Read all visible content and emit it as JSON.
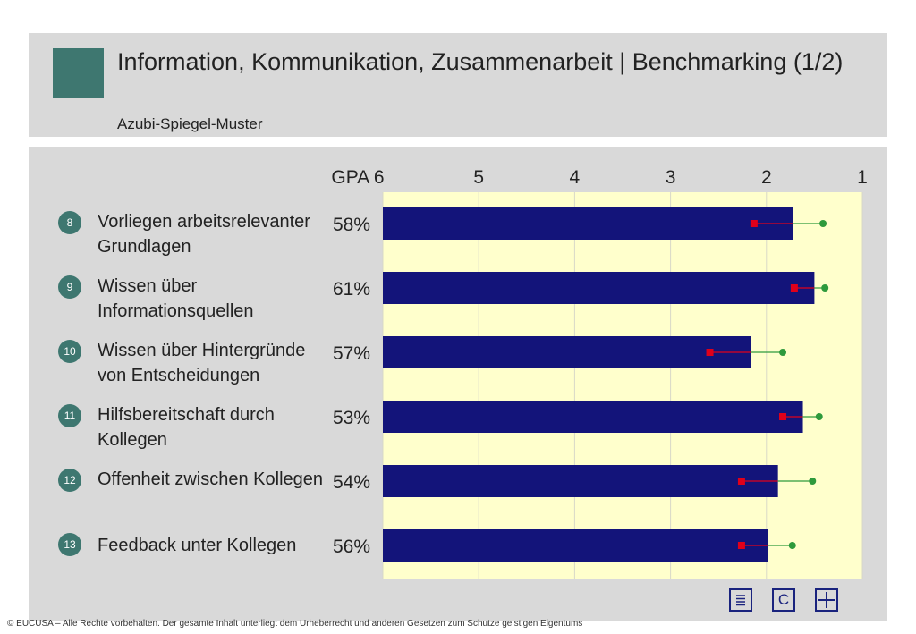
{
  "header": {
    "title": "Information, Kommunikation, Zusammenarbeit  | Benchmarking (1/2)",
    "subtitle": "Azubi-Spiegel-Muster"
  },
  "axis": {
    "prefix": "GPA",
    "ticks": [
      6,
      5,
      4,
      3,
      2,
      1
    ],
    "tick_labels": [
      "GPA 6",
      "5",
      "4",
      "3",
      "2",
      "1"
    ]
  },
  "chart_data": {
    "type": "bar",
    "orientation": "horizontal",
    "xlim": [
      6,
      1
    ],
    "categories": [
      "Vorliegen arbeitsrelevanter Grundlagen",
      "Wissen über Informationsquellen",
      "Wissen über Hintergründe von Entscheidungen",
      "Hilfsbereitschaft durch Kollegen",
      "Offenheit zwischen Kollegen",
      "Feedback unter Kollegen"
    ],
    "item_numbers": [
      "8",
      "9",
      "10",
      "11",
      "12",
      "13"
    ],
    "percent_labels": [
      "58%",
      "61%",
      "57%",
      "53%",
      "54%",
      "56%"
    ],
    "values": [
      1.72,
      1.5,
      2.16,
      1.62,
      1.88,
      1.98
    ],
    "red_markers": [
      2.13,
      1.71,
      2.59,
      1.83,
      2.26,
      2.26
    ],
    "green_markers": [
      1.41,
      1.39,
      1.83,
      1.45,
      1.52,
      1.73
    ],
    "bar_color": "#13147a",
    "red_color": "#e0001a",
    "green_color": "#2e9a3c",
    "grid": true
  },
  "nav": [
    {
      "name": "list-icon",
      "label": ""
    },
    {
      "name": "c-icon",
      "label": "C"
    },
    {
      "name": "grid-icon",
      "label": ""
    }
  ],
  "footer": {
    "copyright": "© EUCUSA – Alle Rechte vorbehalten. Der gesamte Inhalt unterliegt dem Urheberrecht und anderen Gesetzen zum Schutze geistigen Eigentums"
  }
}
